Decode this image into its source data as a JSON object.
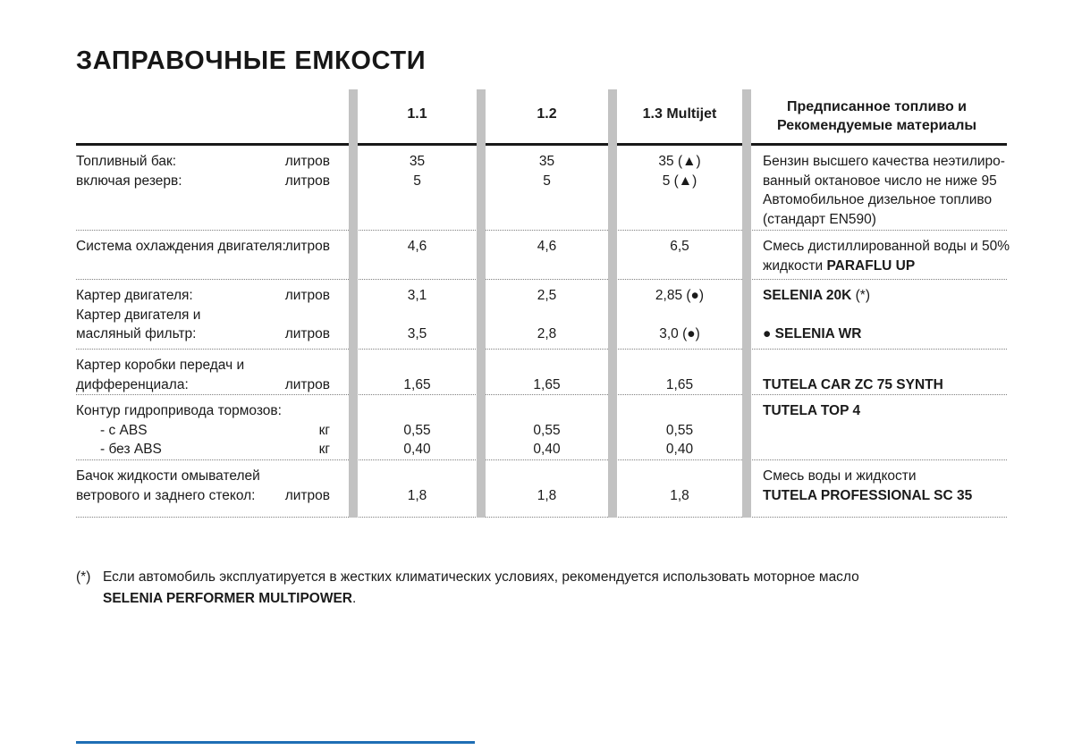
{
  "page": {
    "title": "ЗАПРАВОЧНЫЕ ЕМКОСТИ"
  },
  "colors": {
    "divider_bar": "#c2c2c2",
    "footer_rule": "#1f6eb5",
    "header_rule": "#191919"
  },
  "table": {
    "header": {
      "col1": "1.1",
      "col2": "1.2",
      "col3": "1.3 Multijet",
      "materials_line1": "Предписанное топливо и",
      "materials_line2": "Рекомендуемые материалы"
    },
    "rows": {
      "fuel_tank": {
        "l1": "Топливный бак:",
        "l2": "включая резерв:",
        "u1": "литров",
        "u2": "литров",
        "v11": "35",
        "v12": "5",
        "v21": "35",
        "v22": "5",
        "v31": "35 (▲)",
        "v32": "5 (▲)",
        "m1": "Бензин высшего качества неэтилиро-",
        "m2": "ванный октановое число не ниже 95",
        "m3": "Автомобильное дизельное топливо",
        "m4": "(стандарт EN590)"
      },
      "cooling": {
        "l1": "Система охлаждения двигателя:",
        "u1": "литров",
        "v1": "4,6",
        "v2": "4,6",
        "v3": "6,5",
        "m1": "Смесь дистиллированной воды и 50%",
        "m2a": "жидкости ",
        "m2b": "PARAFLU UP"
      },
      "engine_sump": {
        "l1": "Картер двигателя:",
        "l2": "Картер двигателя и",
        "l3": "масляный фильтр:",
        "u1": "литров",
        "u3": "литров",
        "v11": "3,1",
        "v13": "3,5",
        "v21": "2,5",
        "v23": "2,8",
        "v31": "2,85 (●)",
        "v33": "3,0 (●)",
        "m1a": "SELENIA 20K",
        "m1b": " (*)",
        "m3": "● SELENIA WR"
      },
      "gearbox": {
        "l1": "Картер коробки передач и",
        "l2": "дифференциала:",
        "u2": "литров",
        "v12": "1,65",
        "v22": "1,65",
        "v32": "1,65",
        "m2": "TUTELA CAR ZC 75 SYNTH"
      },
      "brakes": {
        "l1": "Контур гидропривода тормозов:",
        "l2": "- с ABS",
        "l3": "- без ABS",
        "u2": "кг",
        "u3": "кг",
        "v12": "0,55",
        "v13": "0,40",
        "v22": "0,55",
        "v23": "0,40",
        "v32": "0,55",
        "v33": "0,40",
        "m1": "TUTELA TOP 4"
      },
      "washer": {
        "l1": "Бачок жидкости омывателей",
        "l2": "ветрового и заднего стекол:",
        "u2": "литров",
        "v12": "1,8",
        "v22": "1,8",
        "v32": "1,8",
        "m1": "Смесь воды и жидкости",
        "m2": "TUTELA PROFESSIONAL SC 35"
      }
    }
  },
  "footnote": {
    "marker": "(*)",
    "text": "Если автомобиль эксплуатируется в жестких климатических условиях, рекомендуется использовать моторное масло",
    "brand": "SELENIA PERFORMER MULTIPOWER",
    "period": "."
  }
}
